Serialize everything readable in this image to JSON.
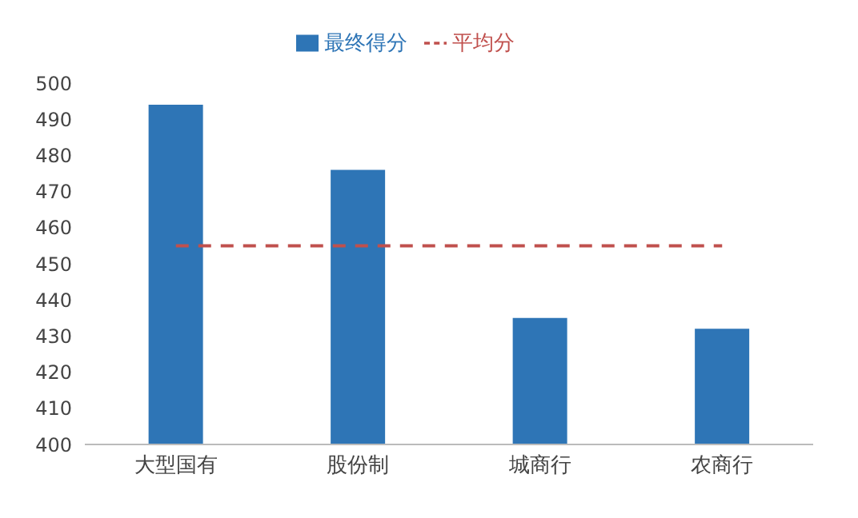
{
  "chart_data": {
    "type": "bar",
    "categories": [
      "大型国有",
      "股份制",
      "城商行",
      "农商行"
    ],
    "series": [
      {
        "name": "最终得分",
        "color": "#2e75b6",
        "values": [
          494,
          476,
          435,
          432
        ]
      },
      {
        "name": "平均分",
        "type": "line",
        "color": "#c0504d",
        "line_style": "dashed",
        "values": [
          455,
          455,
          455,
          455
        ]
      }
    ],
    "ylim": [
      400,
      500
    ],
    "yticks": [
      400,
      410,
      420,
      430,
      440,
      450,
      460,
      470,
      480,
      490,
      500
    ],
    "grid": false,
    "legend": "top",
    "marker": "none"
  }
}
